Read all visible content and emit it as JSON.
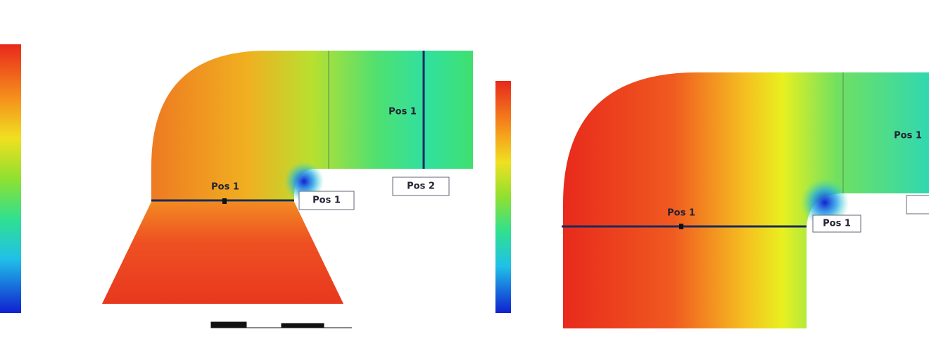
{
  "left_panel": {
    "labels": [
      "Pos 1",
      "Pos 1",
      "Pos 1",
      "Pos 2"
    ]
  },
  "right_panel": {
    "labels": [
      "Pos 1",
      "Pos 1",
      "Pos 1"
    ]
  }
}
